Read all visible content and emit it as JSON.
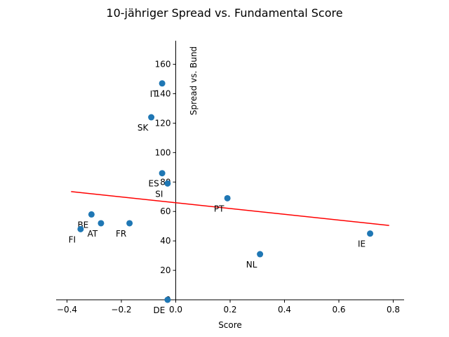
{
  "chart_data": {
    "type": "scatter",
    "title": "10-jähriger Spread vs. Fundamental Score",
    "xlabel": "Score",
    "ylabel": "Spread vs. Bund",
    "xlim": [
      -0.44,
      0.84
    ],
    "ylim": [
      0,
      176
    ],
    "x_ticks": [
      {
        "value": -0.4,
        "label": "−0.4"
      },
      {
        "value": -0.2,
        "label": "−0.2"
      },
      {
        "value": 0.0,
        "label": "0.0"
      },
      {
        "value": 0.2,
        "label": "0.2"
      },
      {
        "value": 0.4,
        "label": "0.4"
      },
      {
        "value": 0.6,
        "label": "0.6"
      },
      {
        "value": 0.8,
        "label": "0.8"
      }
    ],
    "y_ticks": [
      {
        "value": 0,
        "label": "0"
      },
      {
        "value": 20,
        "label": "20"
      },
      {
        "value": 40,
        "label": "40"
      },
      {
        "value": 60,
        "label": "60"
      },
      {
        "value": 80,
        "label": "80"
      },
      {
        "value": 100,
        "label": "100"
      },
      {
        "value": 120,
        "label": "120"
      },
      {
        "value": 140,
        "label": "140"
      },
      {
        "value": 160,
        "label": "160"
      }
    ],
    "points": [
      {
        "label": "IT",
        "x": -0.05,
        "y": 147
      },
      {
        "label": "SK",
        "x": -0.09,
        "y": 124
      },
      {
        "label": "ES",
        "x": -0.05,
        "y": 86
      },
      {
        "label": "SI",
        "x": -0.03,
        "y": 79
      },
      {
        "label": "PT",
        "x": 0.19,
        "y": 69
      },
      {
        "label": "BE",
        "x": -0.31,
        "y": 58
      },
      {
        "label": "AT",
        "x": -0.275,
        "y": 52
      },
      {
        "label": "FR",
        "x": -0.17,
        "y": 52
      },
      {
        "label": "FI",
        "x": -0.35,
        "y": 48
      },
      {
        "label": "IE",
        "x": 0.715,
        "y": 45
      },
      {
        "label": "NL",
        "x": 0.31,
        "y": 31
      },
      {
        "label": "DE",
        "x": -0.03,
        "y": 0
      }
    ],
    "fit_line": {
      "x": [
        -0.385,
        0.785
      ],
      "y": [
        73.5,
        50.5
      ]
    },
    "colors": {
      "points": "#1f77b4",
      "fit_line": "#ff0000",
      "axes": "#000000"
    }
  }
}
